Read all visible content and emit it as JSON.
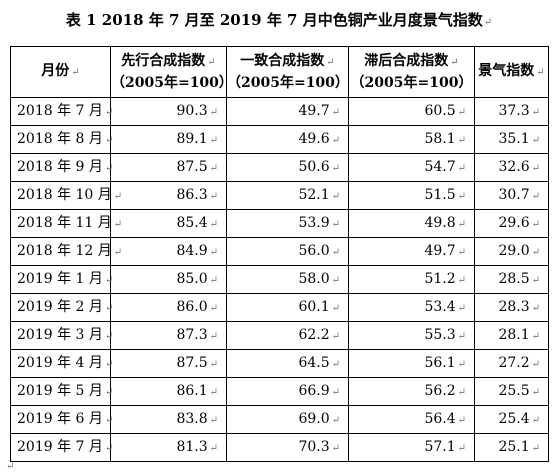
{
  "title": "表 1  2018 年 7 月至 2019 年 7 月中色铜产业月度景气指数",
  "return_mark": "↵",
  "headers": [
    {
      "line1": "月份",
      "line2": ""
    },
    {
      "line1": "先行合成指数",
      "line2": "（2005年=100）"
    },
    {
      "line1": "一致合成指数",
      "line2": "（2005年=100）"
    },
    {
      "line1": "滞后合成指数",
      "line2": "（2005年=100）"
    },
    {
      "line1": "景气指数",
      "line2": ""
    }
  ],
  "rows": [
    {
      "month": "2018 年 7 月",
      "leading": "90.3",
      "coincident": "49.7",
      "lagging": "60.5",
      "prosperity": "37.3"
    },
    {
      "month": "2018 年 8 月",
      "leading": "89.1",
      "coincident": "49.6",
      "lagging": "58.1",
      "prosperity": "35.1"
    },
    {
      "month": "2018 年 9 月",
      "leading": "87.5",
      "coincident": "50.6",
      "lagging": "54.7",
      "prosperity": "32.6"
    },
    {
      "month": "2018 年 10 月",
      "leading": "86.3",
      "coincident": "52.1",
      "lagging": "51.5",
      "prosperity": "30.7"
    },
    {
      "month": "2018 年 11 月",
      "leading": "85.4",
      "coincident": "53.9",
      "lagging": "49.8",
      "prosperity": "29.6"
    },
    {
      "month": "2018 年 12 月",
      "leading": "84.9",
      "coincident": "56.0",
      "lagging": "49.7",
      "prosperity": "29.0"
    },
    {
      "month": "2019 年 1 月",
      "leading": "85.0",
      "coincident": "58.0",
      "lagging": "51.2",
      "prosperity": "28.5"
    },
    {
      "month": "2019 年 2 月",
      "leading": "86.0",
      "coincident": "60.1",
      "lagging": "53.4",
      "prosperity": "28.3"
    },
    {
      "month": "2019 年 3 月",
      "leading": "87.3",
      "coincident": "62.2",
      "lagging": "55.3",
      "prosperity": "28.1"
    },
    {
      "month": "2019 年 4 月",
      "leading": "87.5",
      "coincident": "64.5",
      "lagging": "56.1",
      "prosperity": "27.2"
    },
    {
      "month": "2019 年 5 月",
      "leading": "86.1",
      "coincident": "66.9",
      "lagging": "56.2",
      "prosperity": "25.5"
    },
    {
      "month": "2019 年 6 月",
      "leading": "83.8",
      "coincident": "69.0",
      "lagging": "56.4",
      "prosperity": "25.4"
    },
    {
      "month": "2019 年 7 月",
      "leading": "81.3",
      "coincident": "70.3",
      "lagging": "57.1",
      "prosperity": "25.1"
    }
  ]
}
